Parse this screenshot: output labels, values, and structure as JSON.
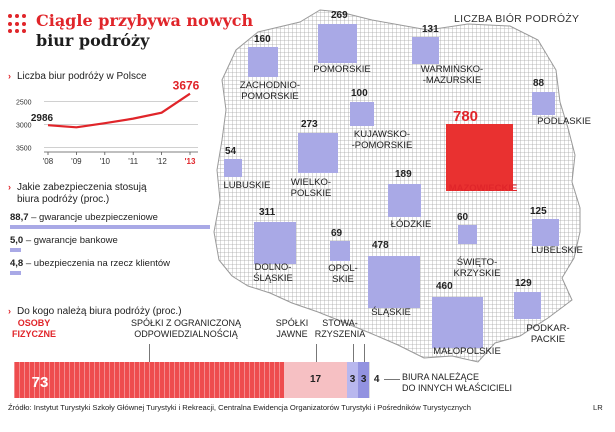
{
  "title": {
    "line1": "Ciągle przybywa nowych",
    "line2": "biur podróży"
  },
  "map": {
    "title": "LICZBA BIÓR PODRÓŻY",
    "regions": [
      {
        "id": "zachodniopomorskie",
        "name": "ZACHODNIO-\nPOMORSKIE",
        "value": 160
      },
      {
        "id": "pomorskie",
        "name": "POMORSKIE",
        "value": 269
      },
      {
        "id": "warminsko-mazurskie",
        "name": "WARMIŃSKO-\n-MAZURSKIE",
        "value": 131
      },
      {
        "id": "podlaskie",
        "name": "PODLASKIE",
        "value": 88
      },
      {
        "id": "kujawsko-pomorskie",
        "name": "KUJAWSKO-\n-POMORSKIE",
        "value": 100
      },
      {
        "id": "lubuskie",
        "name": "LUBUSKIE",
        "value": 54
      },
      {
        "id": "wielkopolskie",
        "name": "WIELKO-\nPOLSKIE",
        "value": 273
      },
      {
        "id": "mazowieckie",
        "name": "MAZOWIECKIE",
        "value": 780
      },
      {
        "id": "lodzkie",
        "name": "ŁÓDZKIE",
        "value": 189
      },
      {
        "id": "dolnoslaskie",
        "name": "DOLNO-\nŚLĄSKIE",
        "value": 311
      },
      {
        "id": "opolskie",
        "name": "OPOL-\nSKIE",
        "value": 69
      },
      {
        "id": "slaskie",
        "name": "ŚLĄSKIE",
        "value": 478
      },
      {
        "id": "swietokrzyskie",
        "name": "ŚWIĘTO-\nKRZYSKIE",
        "value": 60
      },
      {
        "id": "lubelskie",
        "name": "LUBELSKIE",
        "value": 125
      },
      {
        "id": "malopolskie",
        "name": "MAŁOPOLSKIE",
        "value": 460
      },
      {
        "id": "podkarpackie",
        "name": "PODKAR-\nPACKIE",
        "value": 129
      }
    ],
    "highlight_color": "#e93130",
    "square_color": "#a9a9e6"
  },
  "count_section": {
    "title": "Liczba biur podróży w Polsce",
    "y_ticks": [
      "3500",
      "3000",
      "2500"
    ]
  },
  "security_section": {
    "title_line1": "Jakie zabezpieczenia stosują",
    "title_line2": "biura podróży (proc.)",
    "items": [
      {
        "value": "88,7",
        "label": "– gwarancje ubezpieczeniowe",
        "share": 88.7
      },
      {
        "value": "5,0",
        "label": "– gwarancje bankowe",
        "share": 5.0
      },
      {
        "value": "4,8",
        "label": "– ubezpieczenia na rzecz klientów",
        "share": 4.8
      }
    ]
  },
  "ownership_section": {
    "title": "Do kogo należą biura podróży (proc.)",
    "segments": [
      {
        "label": "OSOBY\nFIZYCZNE",
        "value": 73,
        "display": "73"
      },
      {
        "label": "SPÓŁKI Z OGRANICZONĄ\nODPOWIEDZIALNOŚCIĄ",
        "value": 17,
        "display": "17"
      },
      {
        "label": "SPÓŁKI\nJAWNE",
        "value": 3,
        "display": "3"
      },
      {
        "label": "STOWA-\nRZYSZENIA",
        "value": 3,
        "display": "3"
      },
      {
        "label": "BIURA NALEŻĄCE\nDO INNYCH WŁAŚCICIELI",
        "value": 4,
        "display": "4"
      }
    ]
  },
  "source": "Źródło: Instytut Turystyki Szkoły Głównej Turystyki i Rekreacji, Centralna Ewidencja Organizatorów Turystyki i Pośredników Turystycznych",
  "credit": "LR",
  "chart_data": [
    {
      "type": "line",
      "title": "Liczba biur podróży w Polsce",
      "x": [
        "'08",
        "'09",
        "'10",
        "'11",
        "'12",
        "'13"
      ],
      "series": [
        {
          "values": [
            2986,
            2940,
            3030,
            3130,
            3260,
            3676
          ]
        }
      ],
      "value_labels": [
        "2986",
        "3676"
      ],
      "ylim": [
        2400,
        3800
      ],
      "y_ticks": [
        2500,
        3000,
        3500
      ],
      "line_color": "#e0252a",
      "grid": true
    },
    {
      "type": "bar",
      "title": "Jakie zabezpieczenia stosują biura podróży (proc.)",
      "categories": [
        "gwarancje ubezpieczeniowe",
        "gwarancje bankowe",
        "ubezpieczenia na rzecz klientów"
      ],
      "values": [
        88.7,
        5.0,
        4.8
      ]
    },
    {
      "type": "bar",
      "title": "Do kogo należą biura podróży (proc.)",
      "categories": [
        "OSOBY FIZYCZNE",
        "SPÓŁKI Z OGRANICZONĄ ODPOWIEDZIALNOŚCIĄ",
        "SPÓŁKI JAWNE",
        "STOWARZYSZENIA",
        "BIURA NALEŻĄCE DO INNYCH WŁAŚCICIELI"
      ],
      "values": [
        73,
        17,
        3,
        3,
        4
      ]
    }
  ]
}
